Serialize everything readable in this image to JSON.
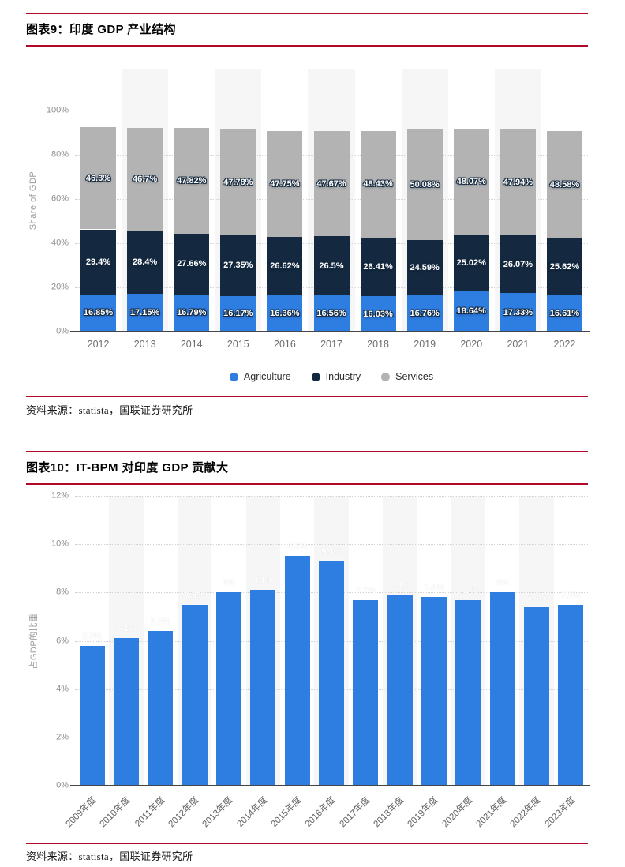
{
  "figure9": {
    "title": "图表9：印度 GDP 产业结构",
    "source": "资料来源：statista，国联证券研究所"
  },
  "figure10": {
    "title": "图表10：IT-BPM 对印度 GDP 贡献大",
    "source": "资料来源：statista，国联证券研究所"
  },
  "colors": {
    "rule_red": "#b00a28",
    "agriculture_blue": "#2e7de0",
    "industry_navy": "#14293f",
    "services_gray": "#b3b3b3",
    "column_band": "#f6f6f6",
    "grid": "#d4d4d4",
    "axis": "#45454a",
    "tick_text": "#8e8e8e"
  },
  "chart_data": [
    {
      "id": "india-gdp-structure",
      "type": "bar",
      "stacked": true,
      "title": "图表9：印度 GDP 产业结构",
      "xlabel": "",
      "ylabel": "Share of GDP",
      "ylim": [
        0,
        100
      ],
      "yticks": [
        "0%",
        "20%",
        "40%",
        "60%",
        "80%",
        "100%"
      ],
      "grid": true,
      "legend_position": "bottom",
      "categories": [
        "2012",
        "2013",
        "2014",
        "2015",
        "2016",
        "2017",
        "2018",
        "2019",
        "2020",
        "2021",
        "2022"
      ],
      "series": [
        {
          "name": "Agriculture",
          "color": "#2e7de0",
          "values": [
            16.85,
            17.15,
            16.79,
            16.17,
            16.36,
            16.56,
            16.03,
            16.76,
            18.64,
            17.33,
            16.61
          ]
        },
        {
          "name": "Industry",
          "color": "#14293f",
          "values": [
            29.4,
            28.4,
            27.66,
            27.35,
            26.62,
            26.5,
            26.41,
            24.59,
            25.02,
            26.07,
            25.62
          ]
        },
        {
          "name": "Services",
          "color": "#b3b3b3",
          "values": [
            46.3,
            46.7,
            47.82,
            47.78,
            47.75,
            47.67,
            48.43,
            50.08,
            48.07,
            47.94,
            48.58
          ]
        }
      ],
      "data_label_format": "value%"
    },
    {
      "id": "india-it-bpm-gdp-share",
      "type": "bar",
      "title": "图表10：IT-BPM 对印度 GDP 贡献大",
      "xlabel": "",
      "ylabel": "占GDP的比重",
      "ylim": [
        0,
        12
      ],
      "yticks": [
        "0%",
        "2%",
        "4%",
        "6%",
        "8%",
        "10%",
        "12%"
      ],
      "grid": true,
      "categories": [
        "2009年度",
        "2010年度",
        "2011年度",
        "2012年度",
        "2013年度",
        "2014年度",
        "2015年度",
        "2016年度",
        "2017年度",
        "2018年度",
        "2019年度",
        "2020年度",
        "2021年度",
        "2022年度",
        "2023年度"
      ],
      "values": [
        5.8,
        6.1,
        6.4,
        7.5,
        8,
        8.1,
        9.5,
        9.3,
        7.7,
        7.9,
        7.8,
        7.7,
        8,
        7.4,
        7.5
      ],
      "bar_color": "#2e7de0",
      "data_label_color": "#ffffff"
    }
  ]
}
